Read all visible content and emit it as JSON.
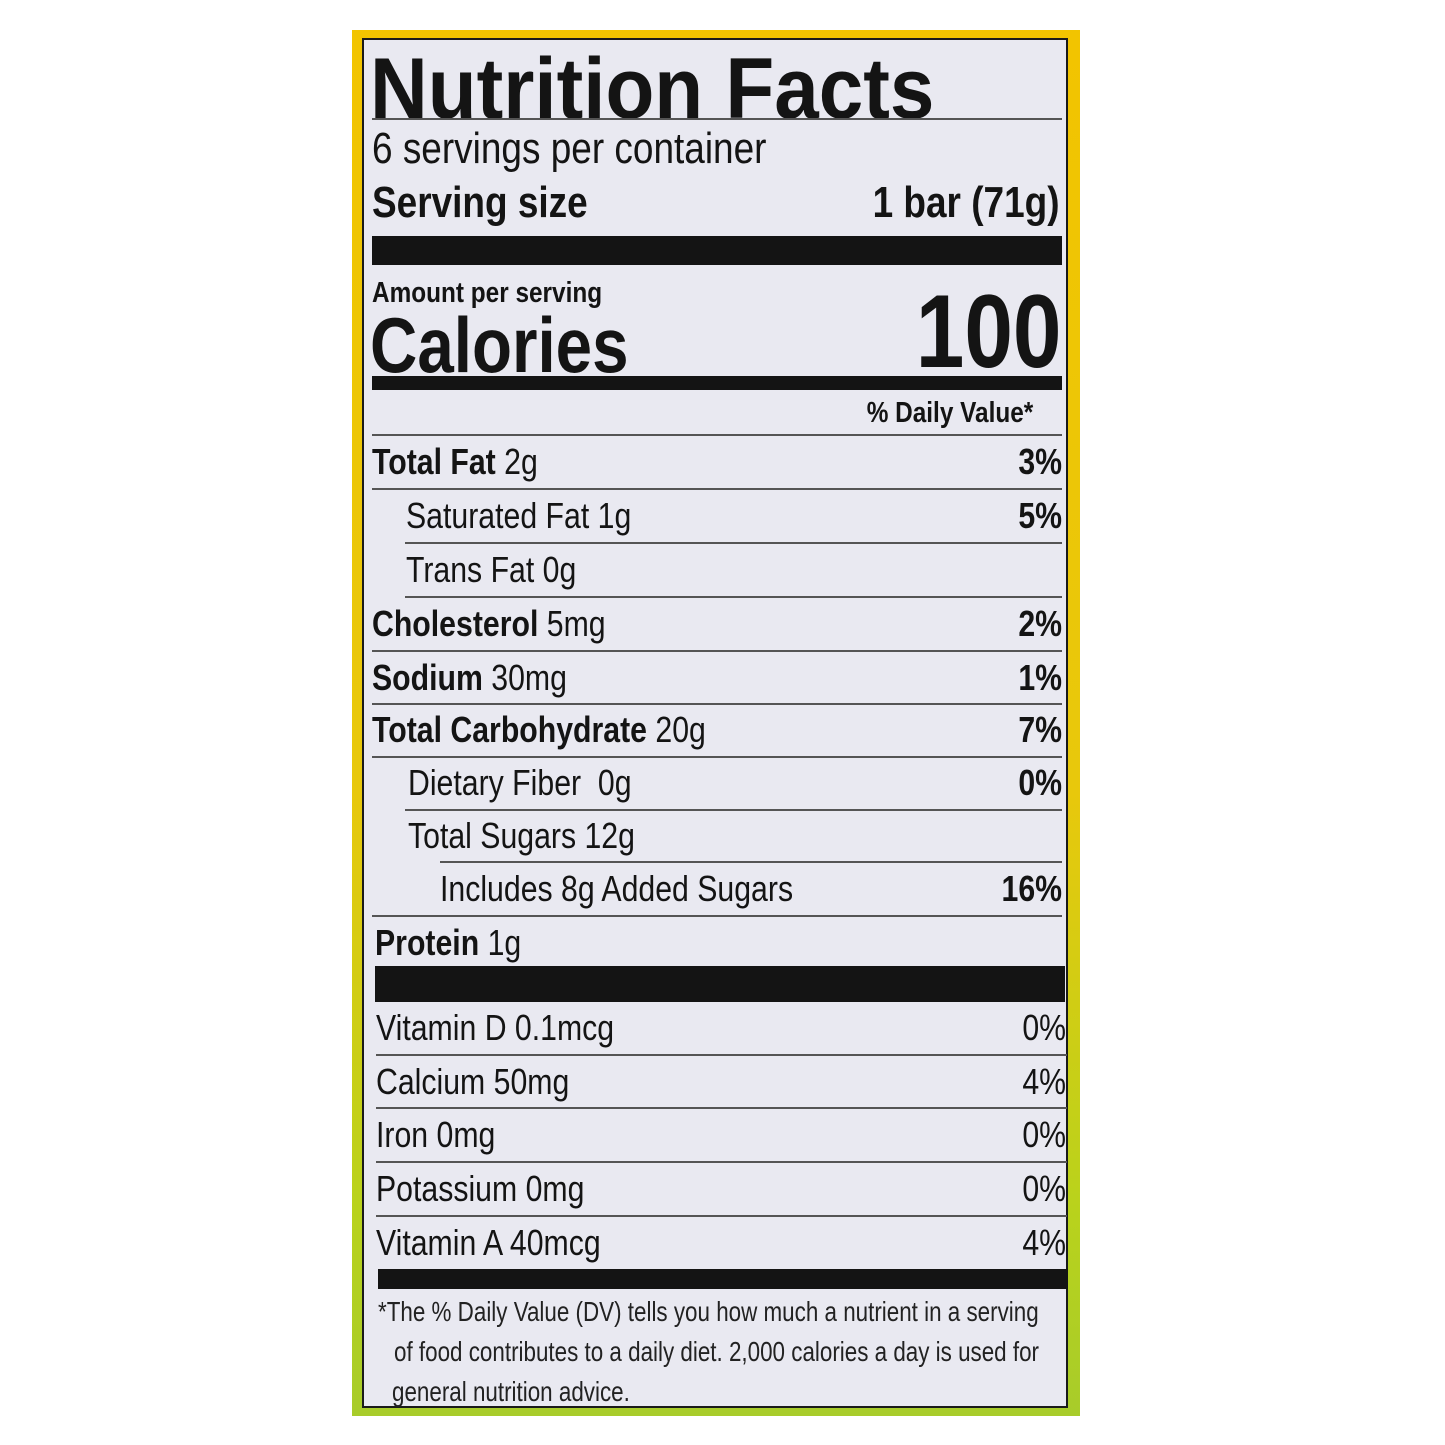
{
  "label": {
    "title": "Nutrition Facts",
    "servings_per_container": "6 servings per container",
    "serving_size_label": "Serving size",
    "serving_size_value": "1 bar (71g)",
    "amount_per_serving": "Amount per serving",
    "calories_label": "Calories",
    "calories_value": "100",
    "dv_header": "% Daily Value*",
    "nutrients": [
      {
        "name": "Total Fat",
        "amount": "2g",
        "dv": "3%"
      },
      {
        "name": "Saturated Fat 1g",
        "amount": "",
        "dv": "5%"
      },
      {
        "name": "Trans Fat 0g",
        "amount": "",
        "dv": ""
      },
      {
        "name": "Cholesterol",
        "amount": "5mg",
        "dv": "2%"
      },
      {
        "name": "Sodium",
        "amount": "30mg",
        "dv": "1%"
      },
      {
        "name": "Total Carbohydrate",
        "amount": "20g",
        "dv": "7%"
      },
      {
        "name": "Dietary Fiber  0g",
        "amount": "",
        "dv": "0%"
      },
      {
        "name": "Total Sugars 12g",
        "amount": "",
        "dv": ""
      },
      {
        "name": "Includes 8g Added Sugars",
        "amount": "",
        "dv": "16%"
      },
      {
        "name": "Protein",
        "amount": "1g",
        "dv": ""
      }
    ],
    "vitamins": [
      {
        "name": "Vitamin D 0.1mcg",
        "dv": "0%"
      },
      {
        "name": "Calcium 50mg",
        "dv": "4%"
      },
      {
        "name": "Iron 0mg",
        "dv": "0%"
      },
      {
        "name": "Potassium 0mg",
        "dv": "0%"
      },
      {
        "name": "Vitamin A 40mcg",
        "dv": "4%"
      }
    ],
    "footnote": [
      "*The % Daily Value (DV) tells you how much a nutrient in a serving",
      "of food contributes to a daily diet. 2,000 calories a day is used for",
      "general nutrition advice."
    ],
    "colors": {
      "frame_top": "#f2c400",
      "frame_bottom": "#a8cc2a",
      "panel": "#e9e9f1",
      "ink": "#141414"
    }
  }
}
